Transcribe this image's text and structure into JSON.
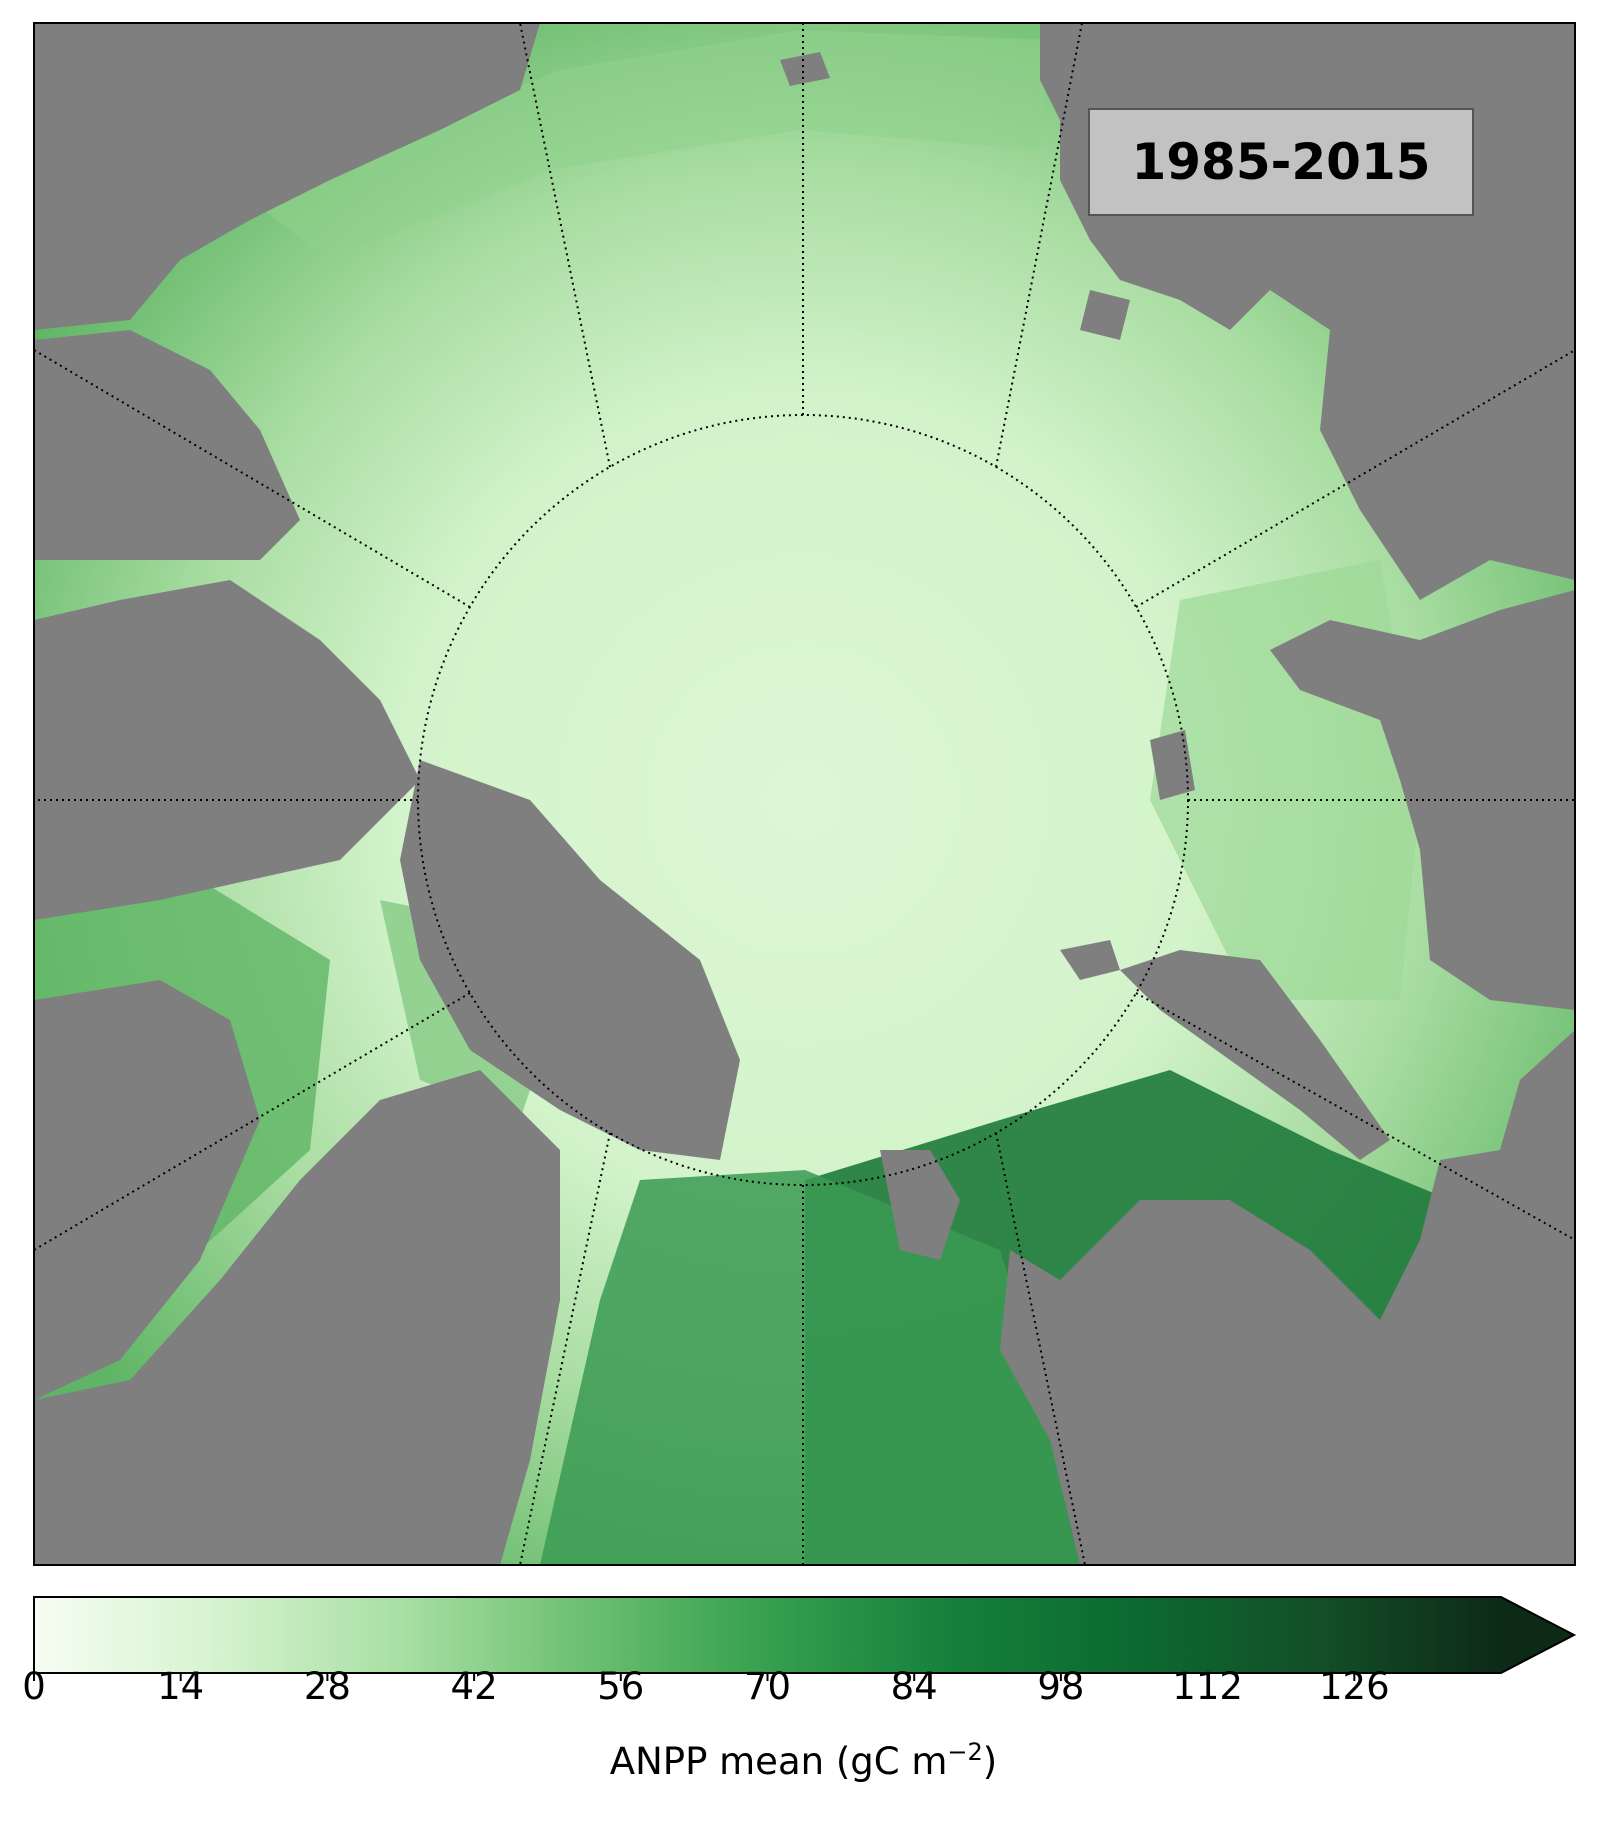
{
  "map": {
    "title_box": "1985-2015",
    "colors": {
      "land": "#7f7f7f",
      "land_ice": "#b4b4b4",
      "ocean_low": "#d9f6d1",
      "ocean_high": "#0c2a14",
      "graticule": "#000000",
      "frame": "#000000"
    },
    "graticule": {
      "meridian_count": 12,
      "circle": "dotted latitude circle around the pole"
    }
  },
  "colorbar": {
    "label_main": "ANPP mean (gC m",
    "label_exp": "−2",
    "label_close": ")",
    "min": 0,
    "max": 140,
    "extend": "max",
    "ticks": [
      "0",
      "14",
      "28",
      "42",
      "56",
      "70",
      "84",
      "98",
      "112",
      "126"
    ],
    "tick_values": [
      0,
      14,
      28,
      42,
      56,
      70,
      84,
      98,
      112,
      126
    ],
    "stops": [
      "#f6fdf3",
      "#d6f3cf",
      "#a8dfa4",
      "#6cc071",
      "#35a04f",
      "#15803b",
      "#0c6a30",
      "#134f28",
      "#0d2a17"
    ]
  }
}
